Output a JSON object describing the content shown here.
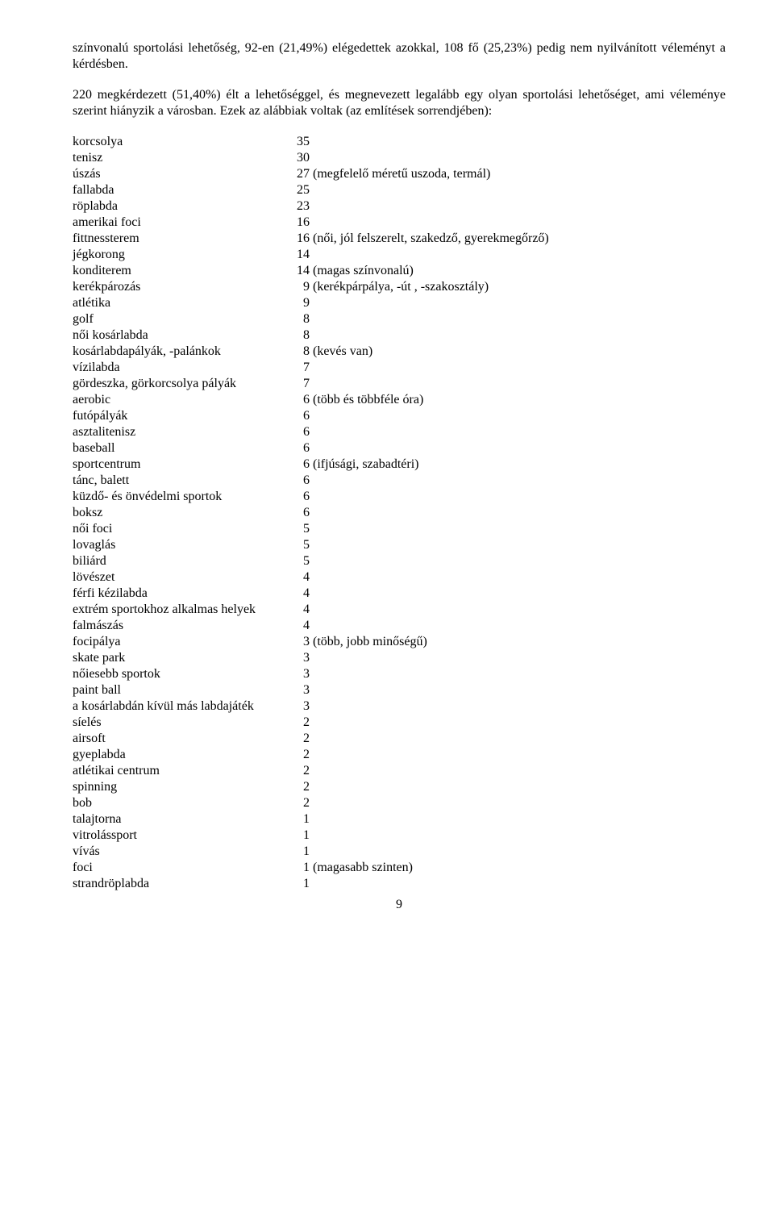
{
  "paragraphs": [
    "színvonalú sportolási lehetőség, 92-en (21,49%) elégedettek azokkal, 108 fő (25,23%) pedig nem nyilvánított véleményt a kérdésben.",
    "220 megkérdezett (51,40%) élt a lehetőséggel, és megnevezett legalább egy olyan sportolási lehetőséget, ami véleménye szerint hiányzik a városban. Ezek az alábbiak voltak (az említések sorrendjében):"
  ],
  "sports": [
    {
      "name": "korcsolya",
      "count": 35,
      "note": ""
    },
    {
      "name": "tenisz",
      "count": 30,
      "note": ""
    },
    {
      "name": "úszás",
      "count": 27,
      "note": "(megfelelő méretű uszoda, termál)"
    },
    {
      "name": "fallabda",
      "count": 25,
      "note": ""
    },
    {
      "name": "röplabda",
      "count": 23,
      "note": ""
    },
    {
      "name": "amerikai foci",
      "count": 16,
      "note": ""
    },
    {
      "name": "fittnessterem",
      "count": 16,
      "note": "(női, jól felszerelt, szakedző, gyerekmegőrző)"
    },
    {
      "name": "jégkorong",
      "count": 14,
      "note": ""
    },
    {
      "name": "konditerem",
      "count": 14,
      "note": "(magas színvonalú)"
    },
    {
      "name": "kerékpározás",
      "count": 9,
      "note": "(kerékpárpálya, -út , -szakosztály)"
    },
    {
      "name": "atlétika",
      "count": 9,
      "note": ""
    },
    {
      "name": "golf",
      "count": 8,
      "note": ""
    },
    {
      "name": "női kosárlabda",
      "count": 8,
      "note": ""
    },
    {
      "name": "kosárlabdapályák, -palánkok",
      "count": 8,
      "note": "(kevés van)"
    },
    {
      "name": "vízilabda",
      "count": 7,
      "note": ""
    },
    {
      "name": "gördeszka, görkorcsolya pályák",
      "count": 7,
      "note": ""
    },
    {
      "name": "aerobic",
      "count": 6,
      "note": "(több és többféle óra)"
    },
    {
      "name": "futópályák",
      "count": 6,
      "note": ""
    },
    {
      "name": "asztalitenisz",
      "count": 6,
      "note": ""
    },
    {
      "name": "baseball",
      "count": 6,
      "note": ""
    },
    {
      "name": "sportcentrum",
      "count": 6,
      "note": "(ifjúsági, szabadtéri)"
    },
    {
      "name": "tánc, balett",
      "count": 6,
      "note": ""
    },
    {
      "name": "küzdő- és önvédelmi sportok",
      "count": 6,
      "note": ""
    },
    {
      "name": "boksz",
      "count": 6,
      "note": ""
    },
    {
      "name": "női foci",
      "count": 5,
      "note": ""
    },
    {
      "name": "lovaglás",
      "count": 5,
      "note": ""
    },
    {
      "name": "biliárd",
      "count": 5,
      "note": ""
    },
    {
      "name": "lövészet",
      "count": 4,
      "note": ""
    },
    {
      "name": "férfi kézilabda",
      "count": 4,
      "note": ""
    },
    {
      "name": "extrém sportokhoz alkalmas helyek",
      "count": 4,
      "note": ""
    },
    {
      "name": "falmászás",
      "count": 4,
      "note": ""
    },
    {
      "name": "focipálya",
      "count": 3,
      "note": "(több, jobb minőségű)"
    },
    {
      "name": "skate park",
      "count": 3,
      "note": ""
    },
    {
      "name": "nőiesebb sportok",
      "count": 3,
      "note": ""
    },
    {
      "name": "paint ball",
      "count": 3,
      "note": ""
    },
    {
      "name": "a kosárlabdán kívül más labdajáték",
      "count": 3,
      "note": ""
    },
    {
      "name": "síelés",
      "count": 2,
      "note": ""
    },
    {
      "name": "airsoft",
      "count": 2,
      "note": ""
    },
    {
      "name": "gyeplabda",
      "count": 2,
      "note": ""
    },
    {
      "name": "atlétikai centrum",
      "count": 2,
      "note": ""
    },
    {
      "name": "spinning",
      "count": 2,
      "note": ""
    },
    {
      "name": "bob",
      "count": 2,
      "note": ""
    },
    {
      "name": "talajtorna",
      "count": 1,
      "note": ""
    },
    {
      "name": "vitrolássport",
      "count": 1,
      "note": ""
    },
    {
      "name": "vívás",
      "count": 1,
      "note": ""
    },
    {
      "name": "foci",
      "count": 1,
      "note": "(magasabb szinten)"
    },
    {
      "name": "strandröplabda",
      "count": 1,
      "note": ""
    }
  ],
  "page_number": "9"
}
